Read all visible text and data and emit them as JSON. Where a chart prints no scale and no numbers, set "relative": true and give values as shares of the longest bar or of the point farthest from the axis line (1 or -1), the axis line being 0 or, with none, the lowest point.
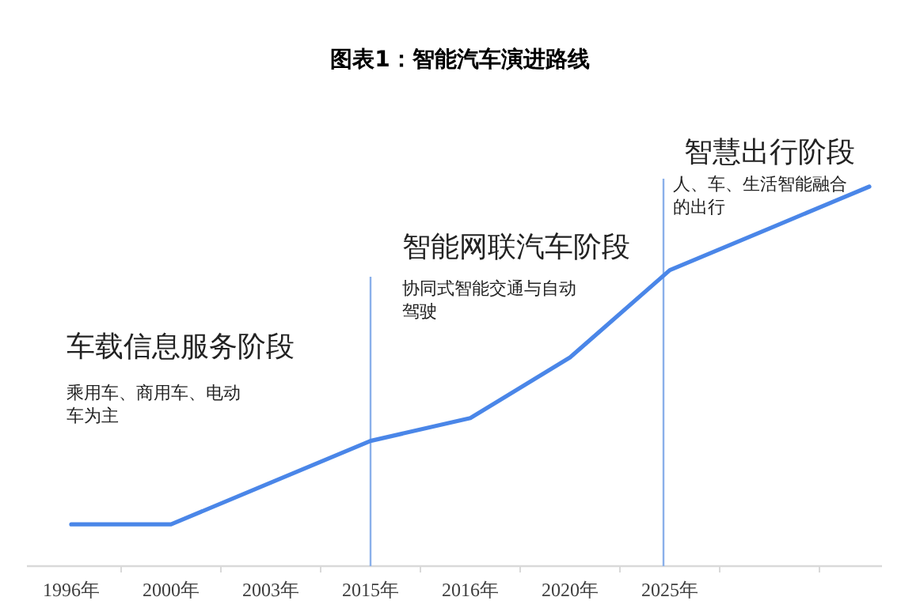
{
  "chart_data": {
    "type": "line",
    "title": "图表1：智能汽车演进路线",
    "relative": true,
    "categories": [
      "1996年",
      "2000年",
      "2003年",
      "2015年",
      "2016年",
      "2020年",
      "2025年",
      null,
      null
    ],
    "series": [
      {
        "color": "#4a86e8",
        "values": [
          0.11,
          0.11,
          0.22,
          0.33,
          0.39,
          0.55,
          0.78,
          0.89,
          1
        ]
      }
    ],
    "ref_lines": [
      {
        "axis": "x",
        "value": "2015年",
        "color": "#8ab0ea"
      },
      {
        "axis": "x",
        "value": "2025年",
        "color": "#8ab0ea"
      }
    ],
    "annotations": [
      "车载信息服务阶段",
      "乘用车、商用车、电动车为主",
      "智能网联汽车阶段",
      "协同式智能交通与自动驾驶",
      "智慧出行阶段",
      "人、车、生活智能融合的出行"
    ]
  }
}
